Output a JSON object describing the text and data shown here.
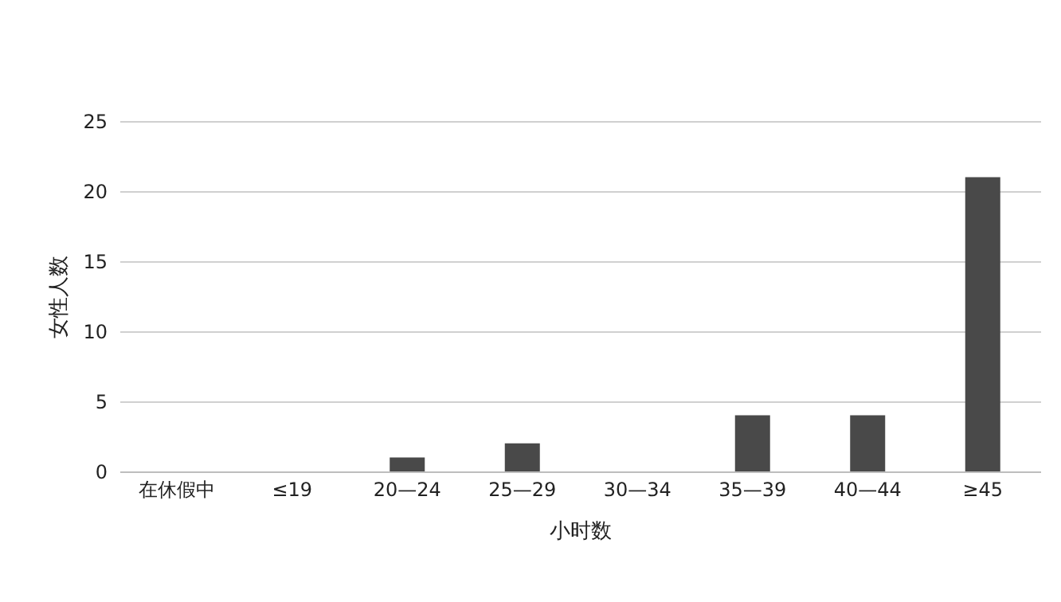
{
  "chart_data": {
    "type": "bar",
    "xlabel": "小时数",
    "ylabel": "女性人数",
    "categories": [
      "在休假中",
      "≤19",
      "20—24",
      "25—29",
      "30—34",
      "35—39",
      "40—44",
      "≥45"
    ],
    "values": [
      0,
      0,
      1,
      2,
      0,
      4,
      4,
      21
    ],
    "color": "#494949",
    "ylim": [
      0,
      25
    ],
    "yticks": [
      0,
      5,
      10,
      15,
      20,
      25
    ],
    "grid": "y"
  }
}
